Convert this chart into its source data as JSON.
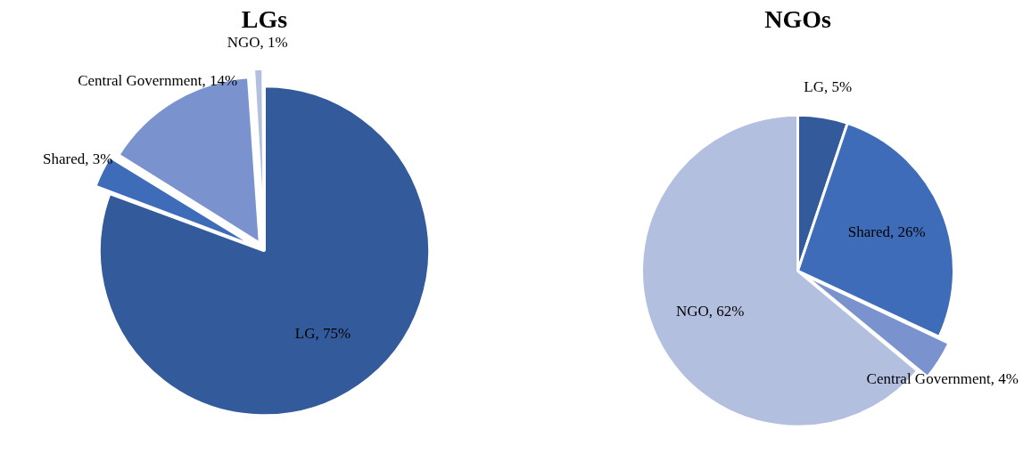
{
  "chart_data": [
    {
      "type": "pie",
      "title": "LGs",
      "categories": [
        "LG",
        "Shared",
        "Central Government",
        "NGO"
      ],
      "values": [
        75,
        3,
        14,
        1
      ],
      "colors": [
        "#335a9a",
        "#3f6cb8",
        "#7a93cf",
        "#b3bfdf"
      ],
      "value_labels": [
        "75%",
        "3%",
        "14%",
        "1%"
      ],
      "legend": false
    },
    {
      "type": "pie",
      "title": "NGOs",
      "categories": [
        "LG",
        "Shared",
        "Central Government",
        "NGO"
      ],
      "values": [
        5,
        26,
        4,
        62
      ],
      "colors": [
        "#335a9a",
        "#3f6cb8",
        "#7a93cf",
        "#b3bfdf"
      ],
      "value_labels": [
        "5%",
        "26%",
        "4%",
        "62%"
      ],
      "legend": false
    }
  ]
}
